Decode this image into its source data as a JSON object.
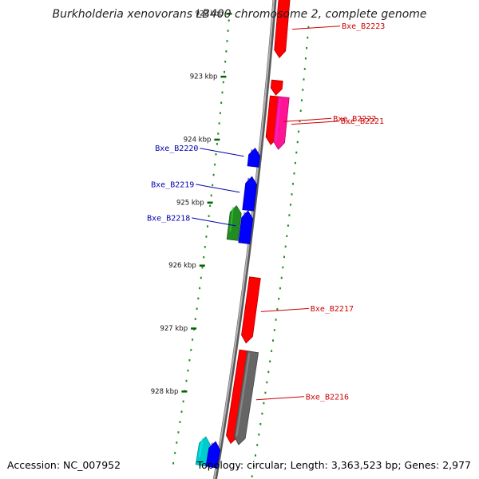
{
  "title": "Burkholderia xenovorans LB400 chromosome 2, complete genome",
  "footer": {
    "accession": "Accession: NC_007952",
    "topology": "Topology: circular; Length: 3,363,523 bp; Genes: 2,977"
  },
  "ticks": [
    {
      "label": "922 kbp",
      "kbp": 922
    },
    {
      "label": "923 kbp",
      "kbp": 923
    },
    {
      "label": "924 kbp",
      "kbp": 924
    },
    {
      "label": "925 kbp",
      "kbp": 925
    },
    {
      "label": "926 kbp",
      "kbp": 926
    },
    {
      "label": "927 kbp",
      "kbp": 927
    },
    {
      "label": "928 kbp",
      "kbp": 928
    }
  ],
  "genes": [
    {
      "name": "Bxe_B2223",
      "strand": "forward",
      "start_kbp": 921.7,
      "end_kbp": 922.62,
      "color": "#ff0000"
    },
    {
      "name": "",
      "strand": "forward",
      "start_kbp": 922.98,
      "end_kbp": 923.21,
      "color": "#ff0000"
    },
    {
      "name": "Bxe_B2222",
      "strand": "forward",
      "start_kbp": 923.23,
      "end_kbp": 923.99,
      "color": "#ff0000"
    },
    {
      "name": "Bxe_B2221",
      "strand": "forward",
      "start_kbp": 923.23,
      "end_kbp": 924.05,
      "color": "#ff1493"
    },
    {
      "name": "Bxe_B2220",
      "strand": "reverse",
      "start_kbp": 924.07,
      "end_kbp": 924.36,
      "color": "#0000ff"
    },
    {
      "name": "Bxe_B2219",
      "strand": "reverse",
      "start_kbp": 924.52,
      "end_kbp": 925.05,
      "color": "#0000ff"
    },
    {
      "name": "Bxe_B2218",
      "strand": "reverse",
      "start_kbp": 925.06,
      "end_kbp": 925.57,
      "color": "#0000ff"
    },
    {
      "name": "",
      "strand": "reverse",
      "start_kbp": 925.0,
      "end_kbp": 925.54,
      "color": "#228b22"
    },
    {
      "name": "Bxe_B2217",
      "strand": "forward",
      "start_kbp": 926.08,
      "end_kbp": 927.11,
      "color": "#ff0000"
    },
    {
      "name": "",
      "strand": "forward",
      "start_kbp": 927.23,
      "end_kbp": 928.69,
      "color": "#ff0000"
    },
    {
      "name": "Bxe_B2216",
      "strand": "forward",
      "start_kbp": 927.23,
      "end_kbp": 928.69,
      "color": "#666666"
    },
    {
      "name": "",
      "strand": "reverse",
      "start_kbp": 928.65,
      "end_kbp": 929.1,
      "color": "#00cccc"
    },
    {
      "name": "",
      "strand": "reverse",
      "start_kbp": 928.7,
      "end_kbp": 929.1,
      "color": "#0000ff"
    }
  ],
  "colors": {
    "forward_label": "#cc0000",
    "reverse_label": "#0000aa",
    "backbone": "#8c8c8c",
    "tick": "#006400"
  }
}
